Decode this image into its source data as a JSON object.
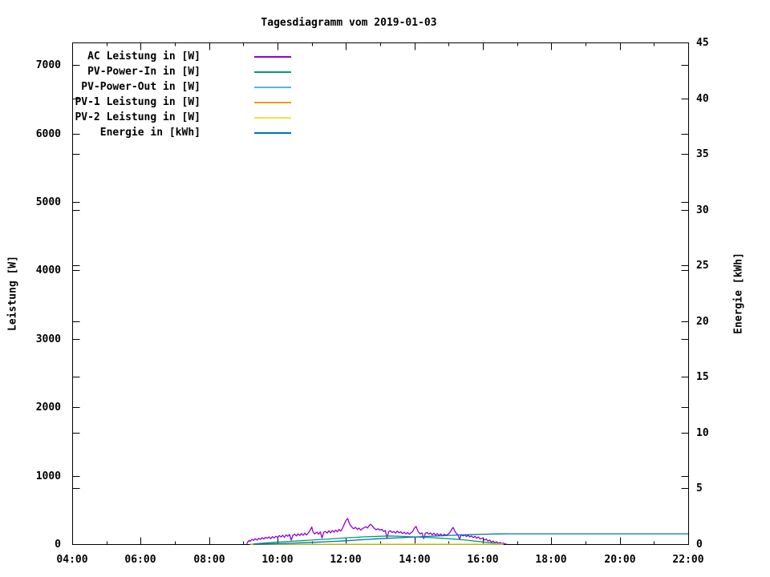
{
  "title": "Tagesdiagramm vom 2019-01-03",
  "y_axis_label": "Leistung [W]",
  "y2_axis_label": "Energie [kWh]",
  "colors": {
    "axis": "#000000",
    "background": "#ffffff",
    "text": "#000000"
  },
  "chart_data": {
    "type": "line",
    "title": "Tagesdiagramm vom 2019-01-03",
    "xlabel": "",
    "ylabel": "Leistung [W]",
    "y2label": "Energie [kWh]",
    "grid": false,
    "legend_position": "top-left-inside",
    "x_range_hours": [
      4,
      22
    ],
    "x_major_ticks": [
      {
        "hour": 4,
        "label": "04:00"
      },
      {
        "hour": 6,
        "label": "06:00"
      },
      {
        "hour": 8,
        "label": "08:00"
      },
      {
        "hour": 10,
        "label": "10:00"
      },
      {
        "hour": 12,
        "label": "12:00"
      },
      {
        "hour": 14,
        "label": "14:00"
      },
      {
        "hour": 16,
        "label": "16:00"
      },
      {
        "hour": 18,
        "label": "18:00"
      },
      {
        "hour": 20,
        "label": "20:00"
      },
      {
        "hour": 22,
        "label": "22:00"
      }
    ],
    "x_minor_tick_hours": [
      5,
      7,
      9,
      11,
      13,
      15,
      17,
      19,
      21
    ],
    "y_ticks": [
      0,
      1000,
      2000,
      3000,
      4000,
      5000,
      6000,
      7000
    ],
    "y_range": [
      0,
      7330
    ],
    "y2_ticks": [
      0,
      5,
      10,
      15,
      20,
      25,
      30,
      35,
      40,
      45
    ],
    "y2_range": [
      0,
      45
    ],
    "series": [
      {
        "name": "AC Leistung in [W]",
        "color": "#9400d3",
        "axis": "y",
        "points": [
          [
            9.1,
            0
          ],
          [
            9.13,
            30
          ],
          [
            9.17,
            55
          ],
          [
            9.2,
            40
          ],
          [
            9.25,
            70
          ],
          [
            9.3,
            55
          ],
          [
            9.35,
            80
          ],
          [
            9.4,
            60
          ],
          [
            9.45,
            85
          ],
          [
            9.5,
            70
          ],
          [
            9.55,
            95
          ],
          [
            9.6,
            75
          ],
          [
            9.65,
            100
          ],
          [
            9.7,
            85
          ],
          [
            9.75,
            105
          ],
          [
            9.8,
            80
          ],
          [
            9.85,
            110
          ],
          [
            9.9,
            90
          ],
          [
            9.95,
            115
          ],
          [
            10.0,
            100
          ],
          [
            10.05,
            125
          ],
          [
            10.1,
            105
          ],
          [
            10.15,
            130
          ],
          [
            10.2,
            100
          ],
          [
            10.25,
            135
          ],
          [
            10.3,
            115
          ],
          [
            10.35,
            140
          ],
          [
            10.4,
            60
          ],
          [
            10.45,
            130
          ],
          [
            10.5,
            145
          ],
          [
            10.55,
            120
          ],
          [
            10.6,
            150
          ],
          [
            10.65,
            125
          ],
          [
            10.7,
            155
          ],
          [
            10.75,
            130
          ],
          [
            10.8,
            160
          ],
          [
            10.85,
            135
          ],
          [
            10.9,
            165
          ],
          [
            10.95,
            200
          ],
          [
            11.0,
            250
          ],
          [
            11.03,
            190
          ],
          [
            11.08,
            150
          ],
          [
            11.15,
            175
          ],
          [
            11.2,
            145
          ],
          [
            11.25,
            180
          ],
          [
            11.3,
            90
          ],
          [
            11.35,
            175
          ],
          [
            11.4,
            185
          ],
          [
            11.45,
            160
          ],
          [
            11.5,
            195
          ],
          [
            11.55,
            165
          ],
          [
            11.6,
            200
          ],
          [
            11.65,
            175
          ],
          [
            11.7,
            205
          ],
          [
            11.75,
            180
          ],
          [
            11.8,
            215
          ],
          [
            11.85,
            190
          ],
          [
            11.9,
            235
          ],
          [
            11.95,
            290
          ],
          [
            12.0,
            345
          ],
          [
            12.05,
            375
          ],
          [
            12.08,
            330
          ],
          [
            12.12,
            280
          ],
          [
            12.17,
            250
          ],
          [
            12.22,
            225
          ],
          [
            12.28,
            245
          ],
          [
            12.33,
            215
          ],
          [
            12.38,
            235
          ],
          [
            12.43,
            205
          ],
          [
            12.48,
            225
          ],
          [
            12.53,
            240
          ],
          [
            12.58,
            255
          ],
          [
            12.63,
            235
          ],
          [
            12.68,
            270
          ],
          [
            12.72,
            290
          ],
          [
            12.77,
            265
          ],
          [
            12.82,
            235
          ],
          [
            12.88,
            210
          ],
          [
            12.93,
            225
          ],
          [
            13.0,
            205
          ],
          [
            13.05,
            215
          ],
          [
            13.1,
            185
          ],
          [
            13.15,
            200
          ],
          [
            13.2,
            90
          ],
          [
            13.25,
            185
          ],
          [
            13.3,
            195
          ],
          [
            13.35,
            170
          ],
          [
            13.4,
            185
          ],
          [
            13.45,
            160
          ],
          [
            13.5,
            190
          ],
          [
            13.55,
            165
          ],
          [
            13.6,
            180
          ],
          [
            13.65,
            155
          ],
          [
            13.7,
            175
          ],
          [
            13.75,
            150
          ],
          [
            13.8,
            170
          ],
          [
            13.85,
            145
          ],
          [
            13.9,
            165
          ],
          [
            13.95,
            185
          ],
          [
            14.0,
            235
          ],
          [
            14.05,
            260
          ],
          [
            14.08,
            215
          ],
          [
            14.12,
            175
          ],
          [
            14.17,
            150
          ],
          [
            14.22,
            165
          ],
          [
            14.27,
            80
          ],
          [
            14.32,
            160
          ],
          [
            14.37,
            170
          ],
          [
            14.42,
            145
          ],
          [
            14.47,
            165
          ],
          [
            14.52,
            135
          ],
          [
            14.57,
            160
          ],
          [
            14.62,
            130
          ],
          [
            14.67,
            155
          ],
          [
            14.72,
            125
          ],
          [
            14.77,
            150
          ],
          [
            14.82,
            120
          ],
          [
            14.87,
            145
          ],
          [
            14.93,
            130
          ],
          [
            15.0,
            150
          ],
          [
            15.05,
            180
          ],
          [
            15.1,
            225
          ],
          [
            15.13,
            245
          ],
          [
            15.17,
            200
          ],
          [
            15.22,
            160
          ],
          [
            15.27,
            135
          ],
          [
            15.32,
            70
          ],
          [
            15.37,
            140
          ],
          [
            15.42,
            120
          ],
          [
            15.47,
            135
          ],
          [
            15.52,
            110
          ],
          [
            15.57,
            130
          ],
          [
            15.62,
            105
          ],
          [
            15.67,
            120
          ],
          [
            15.72,
            95
          ],
          [
            15.77,
            115
          ],
          [
            15.82,
            85
          ],
          [
            15.87,
            105
          ],
          [
            15.92,
            75
          ],
          [
            16.0,
            90
          ],
          [
            16.05,
            60
          ],
          [
            16.1,
            75
          ],
          [
            16.15,
            45
          ],
          [
            16.2,
            60
          ],
          [
            16.25,
            30
          ],
          [
            16.3,
            45
          ],
          [
            16.35,
            20
          ],
          [
            16.4,
            35
          ],
          [
            16.45,
            12
          ],
          [
            16.5,
            25
          ],
          [
            16.55,
            8
          ],
          [
            16.6,
            15
          ],
          [
            16.65,
            4
          ],
          [
            16.7,
            0
          ]
        ]
      },
      {
        "name": "PV-Power-In in [W]",
        "color": "#009e73",
        "axis": "y",
        "points": [
          [
            9.2,
            0
          ],
          [
            9.6,
            15
          ],
          [
            10.0,
            30
          ],
          [
            10.5,
            45
          ],
          [
            11.0,
            60
          ],
          [
            11.5,
            75
          ],
          [
            12.0,
            92
          ],
          [
            12.5,
            105
          ],
          [
            13.0,
            115
          ],
          [
            13.3,
            120
          ],
          [
            13.7,
            112
          ],
          [
            14.0,
            105
          ],
          [
            14.5,
            95
          ],
          [
            15.0,
            80
          ],
          [
            15.5,
            60
          ],
          [
            16.0,
            32
          ],
          [
            16.3,
            15
          ],
          [
            16.6,
            0
          ]
        ]
      },
      {
        "name": "PV-Power-Out in [W]",
        "color": "#56b4e9",
        "axis": "y",
        "points": [
          [
            9.2,
            0
          ],
          [
            16.6,
            0
          ]
        ]
      },
      {
        "name": "PV-1 Leistung in [W]",
        "color": "#e69f00",
        "axis": "y",
        "points": [
          [
            9.2,
            0
          ],
          [
            16.6,
            0
          ]
        ]
      },
      {
        "name": "PV-2 Leistung in [W]",
        "color": "#f0e442",
        "axis": "y",
        "points": [
          [
            9.2,
            0
          ],
          [
            16.6,
            0
          ]
        ]
      },
      {
        "name": "Energie in [kWh]",
        "color": "#0072b2",
        "axis": "y2",
        "points": [
          [
            9.3,
            0
          ],
          [
            9.6,
            0.02
          ],
          [
            10.0,
            0.05
          ],
          [
            10.5,
            0.1
          ],
          [
            11.0,
            0.16
          ],
          [
            11.5,
            0.22
          ],
          [
            12.0,
            0.3
          ],
          [
            12.5,
            0.4
          ],
          [
            13.0,
            0.49
          ],
          [
            13.5,
            0.57
          ],
          [
            14.0,
            0.64
          ],
          [
            14.5,
            0.71
          ],
          [
            15.0,
            0.78
          ],
          [
            15.5,
            0.84
          ],
          [
            16.0,
            0.89
          ],
          [
            16.5,
            0.92
          ],
          [
            16.8,
            0.93
          ],
          [
            22.0,
            0.93
          ]
        ]
      }
    ]
  }
}
